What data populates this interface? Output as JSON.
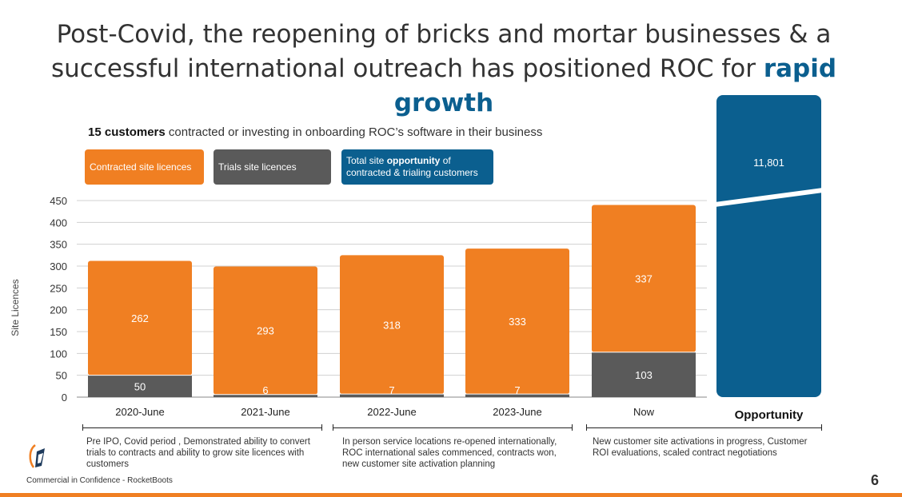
{
  "title": {
    "line1": "Post-Covid, the reopening of bricks and mortar businesses & a",
    "line2_prefix": "successful international outreach has positioned ROC for ",
    "line2_highlight": "rapid growth"
  },
  "subtitle": {
    "bold": "15 customers",
    "rest": " contracted or investing in onboarding ROC’s software in their business"
  },
  "legend": {
    "contracted": "Contracted site licences",
    "trials": "Trials site licences",
    "opportunity_prefix": "Total site ",
    "opportunity_bold": "opportunity",
    "opportunity_suffix": " of contracted & trialing customers"
  },
  "colors": {
    "contracted": "#f07f22",
    "trials": "#5a5a5a",
    "opportunity": "#0b5f8f"
  },
  "chart_data": {
    "type": "bar",
    "stacked": true,
    "ylabel": "Site Licences",
    "ylim": [
      0,
      450
    ],
    "yticks": [
      0,
      50,
      100,
      150,
      200,
      250,
      300,
      350,
      400,
      450
    ],
    "grid": true,
    "categories": [
      "2020-June",
      "2021-June",
      "2022-June",
      "2023-June",
      "Now"
    ],
    "series": [
      {
        "name": "Trials site licences",
        "values": [
          50,
          6,
          7,
          7,
          103
        ]
      },
      {
        "name": "Contracted site licences",
        "values": [
          262,
          293,
          318,
          333,
          337
        ]
      }
    ],
    "opportunity": {
      "label": "Opportunity",
      "value": "11,801"
    }
  },
  "notes": [
    "Pre IPO, Covid period , Demonstrated ability to convert trials to contracts and ability to grow site licences with customers",
    "In person service locations re-opened internationally, ROC international sales commenced, contracts won, new customer site activation planning",
    "New customer site activations in progress, Customer ROI evaluations, scaled contract negotiations"
  ],
  "footer": {
    "confidential": "Commercial in Confidence - RocketBoots",
    "page_number": "6"
  }
}
